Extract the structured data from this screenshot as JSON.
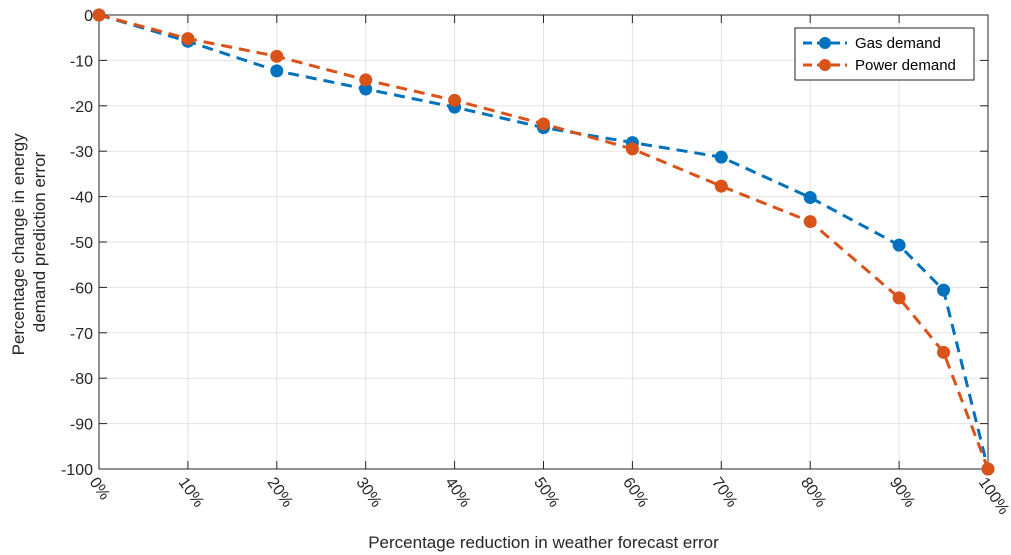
{
  "chart_data": {
    "type": "line",
    "xlabel": "Percentage reduction in weather forecast error",
    "ylabel_lines": [
      "Percentage change in energy",
      "demand prediction error"
    ],
    "x": [
      0,
      10,
      20,
      30,
      40,
      50,
      60,
      70,
      80,
      90,
      95,
      100
    ],
    "x_tick_values": [
      0,
      10,
      20,
      30,
      40,
      50,
      60,
      70,
      80,
      90,
      100
    ],
    "x_tick_labels": [
      "0%",
      "10%",
      "20%",
      "30%",
      "40%",
      "50%",
      "60%",
      "70%",
      "80%",
      "90%",
      "100%"
    ],
    "xlim": [
      0,
      100
    ],
    "ylim": [
      -100,
      0
    ],
    "y_tick_values": [
      0,
      -10,
      -20,
      -30,
      -40,
      -50,
      -60,
      -70,
      -80,
      -90,
      -100
    ],
    "y_tick_labels": [
      "0",
      "-10",
      "-20",
      "-30",
      "-40",
      "-50",
      "-60",
      "-70",
      "-80",
      "-90",
      "-100"
    ],
    "grid": true,
    "legend_position": "top-right",
    "series": [
      {
        "name": "Gas demand",
        "color": "#0072BD",
        "line_style": "dashed",
        "marker": "circle",
        "values": [
          0,
          -5.8,
          -12.3,
          -16.3,
          -20.3,
          -24.8,
          -28.1,
          -31.3,
          -40.2,
          -50.7,
          -60.6,
          -100
        ]
      },
      {
        "name": "Power demand",
        "color": "#D95319",
        "line_style": "dashed",
        "marker": "circle",
        "values": [
          0,
          -5.2,
          -9.1,
          -14.3,
          -18.8,
          -24.0,
          -29.5,
          -37.7,
          -45.5,
          -62.3,
          -74.3,
          -100
        ]
      }
    ]
  }
}
